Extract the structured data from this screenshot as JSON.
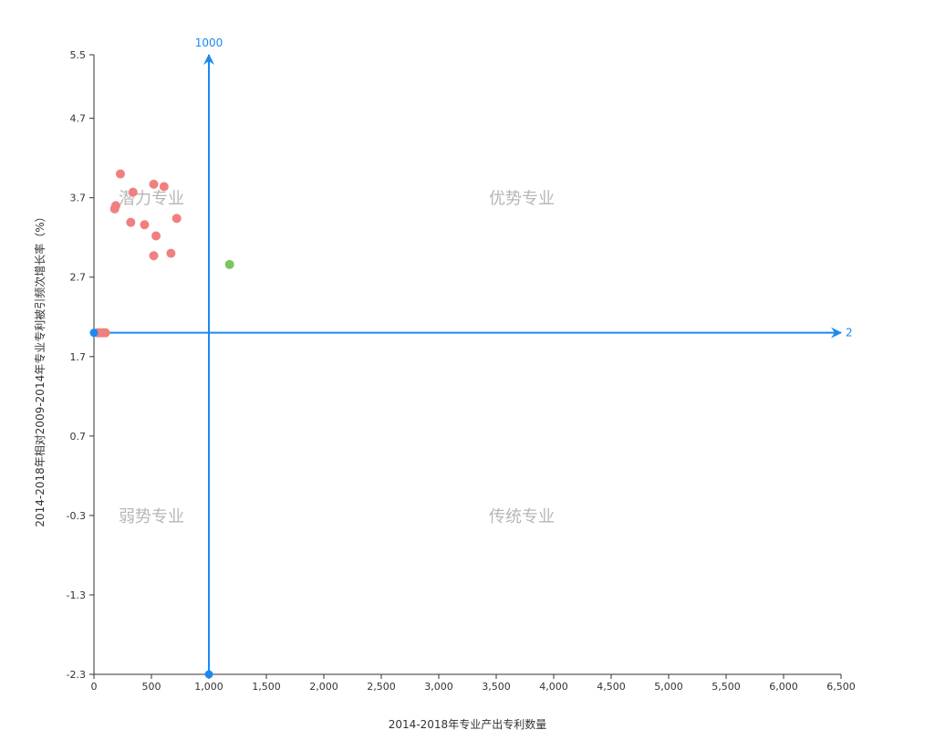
{
  "chart_data": {
    "type": "scatter",
    "xlabel": "2014-2018年专业产出专利数量",
    "ylabel": "2014-2018年相对2009-2014年专业专利被引频次增长率（%）",
    "xlim": [
      0,
      6500
    ],
    "ylim": [
      -2.3,
      5.5
    ],
    "x_ticks": [
      0,
      500,
      1000,
      1500,
      2000,
      2500,
      3000,
      3500,
      4000,
      4500,
      5000,
      5500,
      6000,
      6500
    ],
    "x_tick_labels": [
      "0",
      "500",
      "1,000",
      "1,500",
      "2,000",
      "2,500",
      "3,000",
      "3,500",
      "4,000",
      "4,500",
      "5,000",
      "5,500",
      "6,000",
      "6,500"
    ],
    "y_ticks": [
      5.5,
      4.7,
      3.7,
      2.7,
      1.7,
      0.7,
      -0.3,
      -1.3,
      -2.3
    ],
    "y_tick_labels": [
      "5.5",
      "4.7",
      "3.7",
      "2.7",
      "1.7",
      "0.7",
      "-0.3",
      "-1.3",
      "-2.3"
    ],
    "reference_lines": {
      "vertical": {
        "x": 1000,
        "label": "1000"
      },
      "horizontal": {
        "y": 2,
        "label": "2"
      }
    },
    "quadrant_labels": {
      "top_left": "潜力专业",
      "top_right": "优势专业",
      "bottom_left": "弱势专业",
      "bottom_right": "传统专业"
    },
    "colors": {
      "potential": "#f08080",
      "advantage": "#7cc55a",
      "reference": "#1e88f0",
      "axis": "#333333",
      "quadrant_text": "#b7b7b7"
    },
    "series": [
      {
        "group": "potential",
        "color": "#f08080",
        "points": [
          {
            "x": 230,
            "y": 4.0
          },
          {
            "x": 520,
            "y": 3.87
          },
          {
            "x": 610,
            "y": 3.84
          },
          {
            "x": 340,
            "y": 3.77
          },
          {
            "x": 190,
            "y": 3.6
          },
          {
            "x": 180,
            "y": 3.56
          },
          {
            "x": 720,
            "y": 3.44
          },
          {
            "x": 320,
            "y": 3.39
          },
          {
            "x": 440,
            "y": 3.36
          },
          {
            "x": 540,
            "y": 3.22
          },
          {
            "x": 670,
            "y": 3.0
          },
          {
            "x": 520,
            "y": 2.97
          },
          {
            "x": 30,
            "y": 2.0
          },
          {
            "x": 55,
            "y": 2.0
          },
          {
            "x": 80,
            "y": 2.0
          },
          {
            "x": 100,
            "y": 2.0
          }
        ]
      },
      {
        "group": "advantage",
        "color": "#7cc55a",
        "points": [
          {
            "x": 1180,
            "y": 2.86
          }
        ]
      },
      {
        "group": "reference",
        "color": "#1e88f0",
        "points": [
          {
            "x": 0,
            "y": 2.0
          },
          {
            "x": 1000,
            "y": -2.3
          }
        ]
      }
    ]
  }
}
